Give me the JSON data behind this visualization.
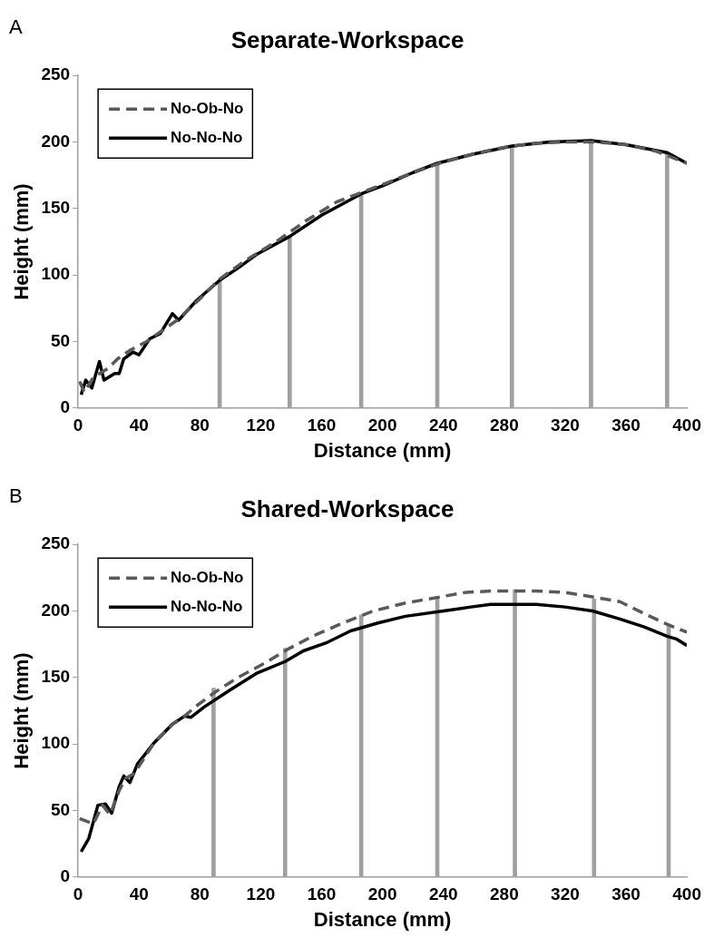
{
  "chart_data": [
    {
      "type": "line",
      "title": "Separate-Workspace",
      "xlabel": "Distance (mm)",
      "ylabel": "Height (mm)",
      "annotations": [
        "A"
      ],
      "xlim": [
        0,
        400
      ],
      "xticks": [
        0,
        40,
        80,
        120,
        160,
        200,
        240,
        280,
        320,
        360,
        400
      ],
      "ylim": [
        0,
        250
      ],
      "yticks": [
        0,
        50,
        100,
        150,
        200,
        250
      ],
      "grid": false,
      "legend": "top left",
      "marker": "none",
      "series": [
        {
          "type": "bar",
          "color": "#a0a0a0",
          "x": [
            93,
            139,
            186,
            236,
            285,
            337,
            387
          ],
          "values": [
            96,
            129,
            161,
            184,
            197,
            201,
            192
          ]
        },
        {
          "name": "No-Ob-No",
          "color": "#595959",
          "line_style": "dashed",
          "x": [
            1,
            4,
            10,
            20,
            26,
            35,
            45,
            55,
            65,
            80,
            93,
            110,
            130,
            150,
            170,
            186,
            200,
            220,
            240,
            260,
            280,
            300,
            320,
            340,
            360,
            380,
            400
          ],
          "values": [
            20,
            12,
            23,
            30,
            37,
            44,
            50,
            58,
            66,
            82,
            97,
            111,
            125,
            141,
            155,
            162,
            168,
            177,
            185,
            191,
            196,
            199,
            200,
            200,
            198,
            193,
            184
          ]
        },
        {
          "name": "No-No-No",
          "color": "#000000",
          "line_style": "solid",
          "x": [
            2,
            5,
            9,
            14,
            17,
            24,
            27,
            30,
            36,
            40,
            47,
            54,
            62,
            66,
            78,
            93,
            106,
            118,
            139,
            160,
            186,
            200,
            220,
            236,
            260,
            285,
            310,
            337,
            360,
            387,
            400
          ],
          "values": [
            10,
            21,
            15,
            35,
            21,
            26,
            26,
            37,
            42,
            40,
            52,
            56,
            71,
            66,
            81,
            96,
            106,
            116,
            129,
            145,
            161,
            167,
            177,
            184,
            191,
            197,
            200,
            201,
            198,
            192,
            184
          ]
        }
      ]
    },
    {
      "type": "line",
      "title": "Shared-Workspace",
      "xlabel": "Distance (mm)",
      "ylabel": "Height (mm)",
      "annotations": [
        "B"
      ],
      "xlim": [
        0,
        400
      ],
      "xticks": [
        0,
        40,
        80,
        120,
        160,
        200,
        240,
        280,
        320,
        360,
        400
      ],
      "ylim": [
        0,
        250
      ],
      "yticks": [
        0,
        50,
        100,
        150,
        200,
        250
      ],
      "grid": false,
      "legend": "top left",
      "marker": "none",
      "series": [
        {
          "type": "bar",
          "color": "#a0a0a0",
          "x": [
            89,
            136,
            186,
            236,
            287,
            339,
            388
          ],
          "values": [
            142,
            172,
            197,
            210,
            216,
            209,
            190
          ]
        },
        {
          "name": "No-Ob-No",
          "color": "#595959",
          "line_style": "dashed",
          "x": [
            1,
            10,
            16,
            21,
            27,
            31,
            37,
            50,
            62,
            70,
            77,
            90,
            105,
            123,
            139,
            154,
            172,
            194,
            215,
            240,
            255,
            271,
            301,
            320,
            341,
            356,
            372,
            387,
            400
          ],
          "values": [
            44,
            40,
            54,
            47,
            65,
            74,
            78,
            101,
            115,
            121,
            128,
            139,
            150,
            161,
            172,
            181,
            190,
            200,
            206,
            211,
            214,
            215,
            215,
            214,
            210,
            207,
            198,
            190,
            184
          ]
        },
        {
          "name": "No-No-No",
          "color": "#000000",
          "line_style": "solid",
          "x": [
            2,
            7,
            13,
            18,
            22,
            27,
            30,
            34,
            39,
            50,
            62,
            70,
            74,
            83,
            99,
            117,
            136,
            148,
            163,
            179,
            197,
            215,
            240,
            258,
            271,
            286,
            301,
            320,
            338,
            356,
            372,
            387,
            393,
            400
          ],
          "values": [
            19,
            29,
            54,
            55,
            48,
            68,
            76,
            71,
            85,
            101,
            115,
            121,
            120,
            128,
            140,
            153,
            162,
            170,
            176,
            185,
            191,
            196,
            200,
            203,
            205,
            205,
            205,
            203,
            200,
            194,
            188,
            181,
            179,
            174
          ]
        }
      ]
    }
  ]
}
